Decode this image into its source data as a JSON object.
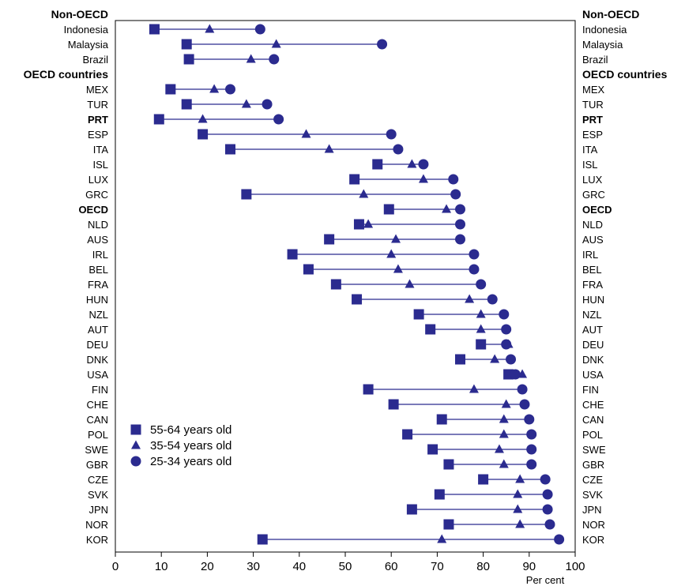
{
  "chart_data": {
    "type": "dot-range",
    "xlabel": "Per cent",
    "xlim": [
      0,
      100
    ],
    "xticks": [
      0,
      10,
      20,
      30,
      40,
      50,
      60,
      70,
      80,
      90,
      100
    ],
    "legend_position": "bottom-left",
    "series": [
      {
        "key": "s55",
        "name": "55-64 years old",
        "marker": "square",
        "color": "#2b2b8f"
      },
      {
        "key": "s35",
        "name": "35-54 years old",
        "marker": "triangle",
        "color": "#2b2b8f"
      },
      {
        "key": "s25",
        "name": "25-34 years old",
        "marker": "circle",
        "color": "#2b2b8f"
      }
    ],
    "rows": [
      {
        "label": "Non-OECD",
        "header": true
      },
      {
        "label": "Indonesia",
        "s55": 8.5,
        "s35": 20.5,
        "s25": 31.5
      },
      {
        "label": "Malaysia",
        "s55": 15.5,
        "s35": 35,
        "s25": 58
      },
      {
        "label": "Brazil",
        "s55": 16,
        "s35": 29.5,
        "s25": 34.5
      },
      {
        "label": "OECD countries",
        "header": true
      },
      {
        "label": "MEX",
        "s55": 12,
        "s35": 21.5,
        "s25": 25
      },
      {
        "label": "TUR",
        "s55": 15.5,
        "s35": 28.5,
        "s25": 33
      },
      {
        "label": "PRT",
        "bold": true,
        "s55": 9.5,
        "s35": 19,
        "s25": 35.5
      },
      {
        "label": "ESP",
        "s55": 19,
        "s35": 41.5,
        "s25": 60
      },
      {
        "label": "ITA",
        "s55": 25,
        "s35": 46.5,
        "s25": 61.5
      },
      {
        "label": "ISL",
        "s55": 57,
        "s35": 64.5,
        "s25": 67
      },
      {
        "label": "LUX",
        "s55": 52,
        "s35": 67,
        "s25": 73.5
      },
      {
        "label": "GRC",
        "s55": 28.5,
        "s35": 54,
        "s25": 74
      },
      {
        "label": "OECD",
        "bold": true,
        "s55": 59.5,
        "s35": 72,
        "s25": 75
      },
      {
        "label": "NLD",
        "s55": 53,
        "s35": 55,
        "s25": 75
      },
      {
        "label": "AUS",
        "s55": 46.5,
        "s35": 61,
        "s25": 75
      },
      {
        "label": "IRL",
        "s55": 38.5,
        "s35": 60,
        "s25": 78
      },
      {
        "label": "BEL",
        "s55": 42,
        "s35": 61.5,
        "s25": 78
      },
      {
        "label": "FRA",
        "s55": 48,
        "s35": 64,
        "s25": 79.5
      },
      {
        "label": "HUN",
        "s55": 52.5,
        "s35": 77,
        "s25": 82
      },
      {
        "label": "NZL",
        "s55": 66,
        "s35": 79.5,
        "s25": 84.5
      },
      {
        "label": "AUT",
        "s55": 68.5,
        "s35": 79.5,
        "s25": 85
      },
      {
        "label": "DEU",
        "s55": 79.5,
        "s35": 85.5,
        "s25": 85
      },
      {
        "label": "DNK",
        "s55": 75,
        "s35": 82.5,
        "s25": 86
      },
      {
        "label": "USA",
        "s55": 85.5,
        "s35": 88.5,
        "s25": 87
      },
      {
        "label": "FIN",
        "s55": 55,
        "s35": 78,
        "s25": 88.5
      },
      {
        "label": "CHE",
        "s55": 60.5,
        "s35": 85,
        "s25": 89
      },
      {
        "label": "CAN",
        "s55": 71,
        "s35": 84.5,
        "s25": 90
      },
      {
        "label": "POL",
        "s55": 63.5,
        "s35": 84.5,
        "s25": 90.5
      },
      {
        "label": "SWE",
        "s55": 69,
        "s35": 83.5,
        "s25": 90.5
      },
      {
        "label": "GBR",
        "s55": 72.5,
        "s35": 84.5,
        "s25": 90.5
      },
      {
        "label": "CZE",
        "s55": 80,
        "s35": 88,
        "s25": 93.5
      },
      {
        "label": "SVK",
        "s55": 70.5,
        "s35": 87.5,
        "s25": 94
      },
      {
        "label": "JPN",
        "s55": 64.5,
        "s35": 87.5,
        "s25": 94
      },
      {
        "label": "NOR",
        "s55": 72.5,
        "s35": 88,
        "s25": 94.5
      },
      {
        "label": "KOR",
        "s55": 32,
        "s35": 71,
        "s25": 96.5
      }
    ]
  }
}
